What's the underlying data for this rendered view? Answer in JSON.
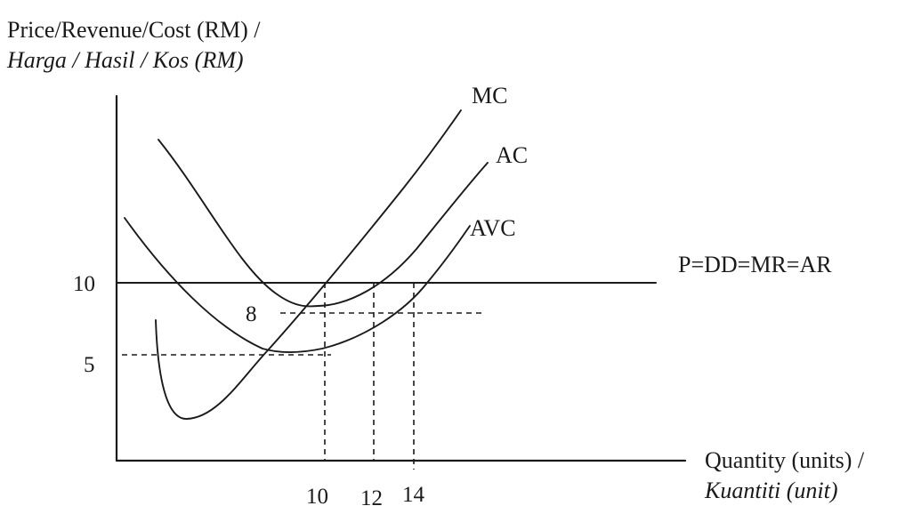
{
  "y_axis_title": {
    "line1": "Price/Revenue/Cost (RM) /",
    "line2": "Harga / Hasil / Kos (RM)"
  },
  "x_axis_title": {
    "line1": "Quantity (units) /",
    "line2": "Kuantiti (unit)"
  },
  "curves": {
    "mc": "MC",
    "ac": "AC",
    "avc": "AVC",
    "demand": "P=DD=MR=AR"
  },
  "y_ticks": {
    "price": "10",
    "ac_level": "8",
    "avc_level": "5"
  },
  "x_ticks": {
    "q1": "10",
    "q2": "12",
    "q3": "14"
  }
}
